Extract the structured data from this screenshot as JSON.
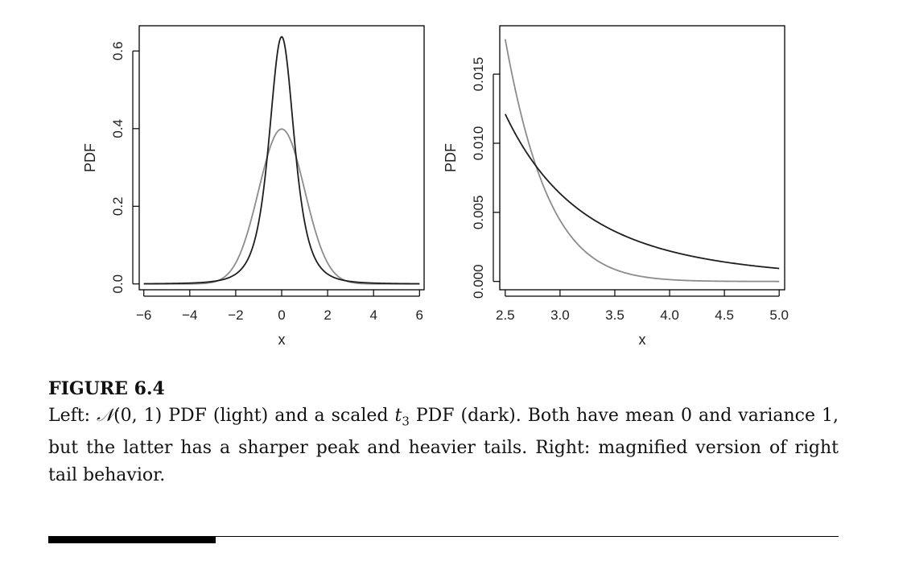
{
  "chart_data": [
    {
      "type": "line",
      "xlabel": "x",
      "ylabel": "PDF",
      "xlim": [
        -6.2,
        6.2
      ],
      "ylim": [
        -0.015,
        0.665
      ],
      "xticks": [
        "−6",
        "−4",
        "−2",
        "0",
        "2",
        "4",
        "6"
      ],
      "xtick_values": [
        -6,
        -4,
        -2,
        0,
        2,
        4,
        6
      ],
      "yticks": [
        "0.0",
        "0.2",
        "0.4",
        "0.6"
      ],
      "ytick_values": [
        0,
        0.2,
        0.4,
        0.6
      ],
      "x_range": [
        -6,
        6
      ],
      "series": [
        {
          "color": "#8c8c8c",
          "distribution": "normal(0,1)"
        },
        {
          "color": "#1e1e1e",
          "distribution": "scaled t3"
        }
      ]
    },
    {
      "type": "line",
      "xlabel": "x",
      "ylabel": "PDF",
      "xlim": [
        2.45,
        5.05
      ],
      "ylim": [
        -0.0006,
        0.0185
      ],
      "xticks": [
        "2.5",
        "3.0",
        "3.5",
        "4.0",
        "4.5",
        "5.0"
      ],
      "xtick_values": [
        2.5,
        3.0,
        3.5,
        4.0,
        4.5,
        5.0
      ],
      "yticks": [
        "0.000",
        "0.005",
        "0.010",
        "0.015"
      ],
      "ytick_values": [
        0,
        0.005,
        0.01,
        0.015
      ],
      "x_range": [
        2.5,
        5.0
      ],
      "series": [
        {
          "color": "#8c8c8c",
          "distribution": "normal(0,1)"
        },
        {
          "color": "#1e1e1e",
          "distribution": "scaled t3"
        }
      ]
    }
  ],
  "caption": {
    "title": "FIGURE 6.4",
    "body_before_normal": "Left: ",
    "normal_symbol": "𝒩",
    "normal_args": "(0, 1)",
    "body_middle": " PDF (light) and a scaled ",
    "t_letter": "t",
    "t_subscript": "3",
    "body_after": " PDF (dark). Both have mean 0 and variance 1, but the latter has a sharper peak and heavier tails. Right: magnified version of right tail behavior."
  }
}
